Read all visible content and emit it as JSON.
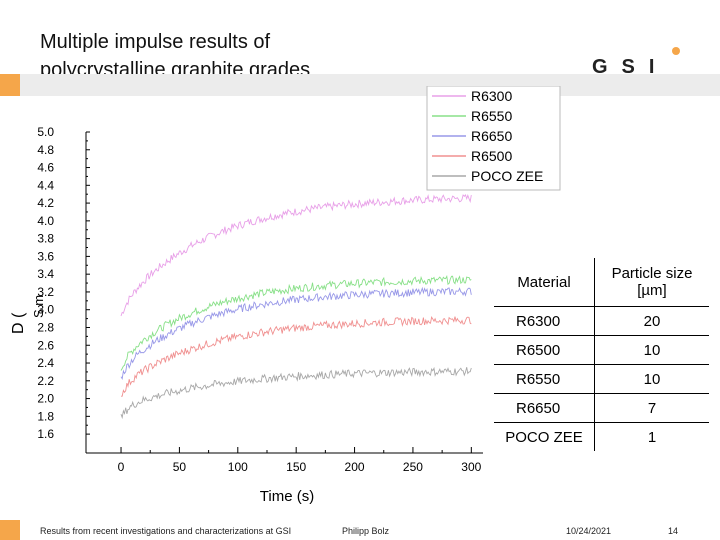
{
  "slide": {
    "title_line1": "Multiple impulse results of",
    "title_line2": "polycrystalline graphite grades",
    "accent_color": "#f5a64a",
    "logo_text": "GSI"
  },
  "chart_data": {
    "type": "scatter",
    "title": "",
    "xlabel": "Time (s)",
    "ylabel": "D (",
    "ylabel_extra": "S m",
    "x_ticks": [
      "0",
      "50",
      "100",
      "150",
      "200",
      "250",
      "300"
    ],
    "y_ticks": [
      "1.6",
      "1.8",
      "2.0",
      "2.2",
      "2.4",
      "2.6",
      "2.8",
      "3.0",
      "3.2",
      "3.4",
      "3.6",
      "3.8",
      "4.0",
      "4.2",
      "4.4",
      "4.6",
      "4.8",
      "5.0"
    ],
    "xlim": [
      -30,
      310
    ],
    "ylim": [
      1.5,
      5.0
    ],
    "legend_position": "top-right",
    "grid": false,
    "series": [
      {
        "name": "R6300",
        "color": "#e8a0e8",
        "start": 3.05,
        "end": 4.28,
        "k": 0.013
      },
      {
        "name": "R6550",
        "color": "#88e088",
        "start": 2.45,
        "end": 3.35,
        "k": 0.014
      },
      {
        "name": "R6650",
        "color": "#9898e8",
        "start": 2.35,
        "end": 3.22,
        "k": 0.014
      },
      {
        "name": "R6500",
        "color": "#f09090",
        "start": 2.15,
        "end": 2.9,
        "k": 0.013
      },
      {
        "name": "POCO ZEE",
        "color": "#a8a8a8",
        "start": 1.9,
        "end": 2.32,
        "k": 0.012
      }
    ],
    "x_start": 0,
    "x_end": 300
  },
  "table": {
    "header_material": "Material",
    "header_size": "Particle size [µm]",
    "rows": [
      {
        "material": "R6300",
        "size": "20"
      },
      {
        "material": "R6500",
        "size": "10"
      },
      {
        "material": "R6550",
        "size": "10"
      },
      {
        "material": "R6650",
        "size": "7"
      },
      {
        "material": "POCO ZEE",
        "size": "1"
      }
    ]
  },
  "footer": {
    "source": "Results from recent investigations and characterizations at GSI",
    "author": "Philipp Bolz",
    "date": "10/24/2021",
    "page": "14"
  }
}
